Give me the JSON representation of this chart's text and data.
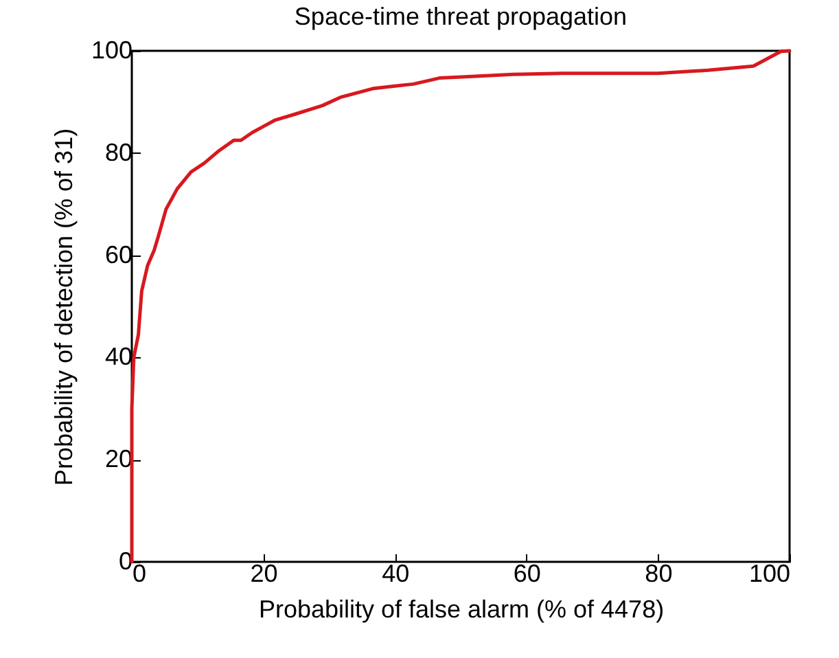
{
  "chart_data": {
    "type": "line",
    "title": "Space-time threat propagation",
    "xlabel": "Probability of false alarm (% of 4478)",
    "ylabel": "Probability of detection (% of 31)",
    "xlim": [
      0,
      100
    ],
    "ylim": [
      0,
      100
    ],
    "xticks": [
      0,
      20,
      40,
      60,
      80,
      100
    ],
    "yticks": [
      0,
      20,
      40,
      60,
      80,
      100
    ],
    "grid": false,
    "marker": "none",
    "line_style": "solid",
    "series": [
      {
        "color": "#d7191f",
        "x": [
          0,
          0,
          0,
          0.3,
          1.0,
          1.5,
          2.4,
          3.4,
          4.1,
          5.2,
          6.9,
          9.0,
          11.0,
          13.1,
          15.5,
          16.6,
          18.3,
          20,
          21.7,
          24.8,
          29,
          31.7,
          36.6,
          40,
          42.8,
          46.9,
          51.8,
          58,
          65.5,
          80,
          87.6,
          94.5,
          98.7,
          100
        ],
        "values": [
          0,
          3,
          30,
          40,
          44.5,
          53,
          58,
          61,
          64,
          69,
          73,
          76.3,
          78,
          80.3,
          82.5,
          82.5,
          84,
          85.2,
          86.4,
          87.6,
          89.3,
          90.9,
          92.6,
          93.1,
          93.5,
          94.7,
          95,
          95.4,
          95.6,
          95.6,
          96.2,
          97,
          99.9,
          100
        ]
      }
    ]
  }
}
